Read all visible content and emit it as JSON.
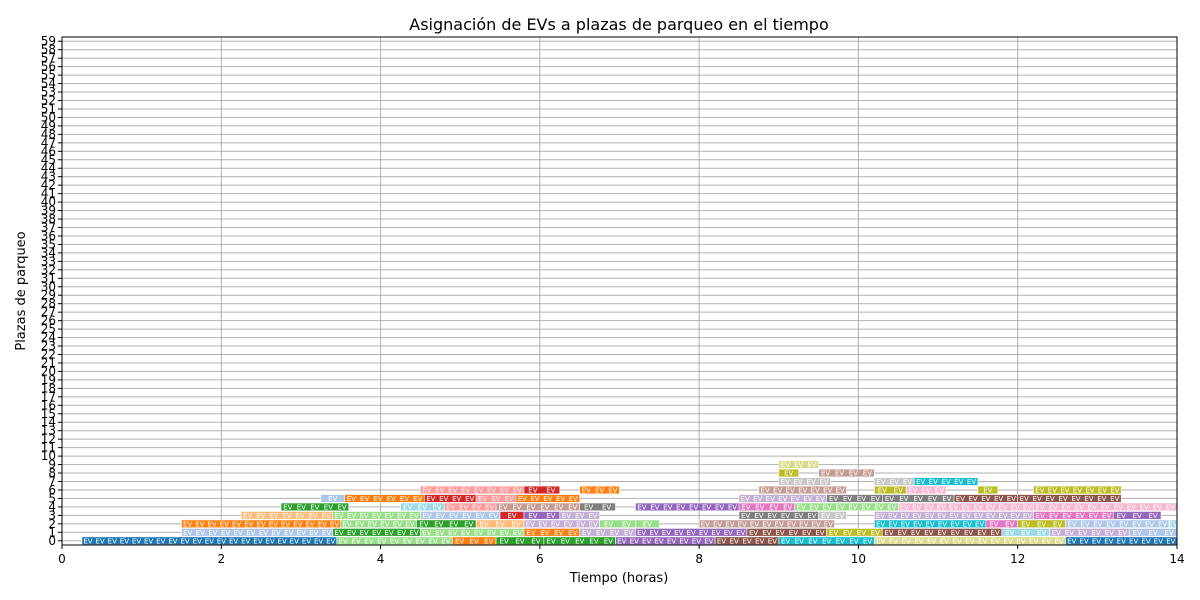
{
  "chart_data": {
    "type": "timeline",
    "title": "Asignación de EVs a plazas de parqueo en el tiempo",
    "xlabel": "Tiempo (horas)",
    "ylabel": "Plazas de parqueo",
    "xlim": [
      0,
      14
    ],
    "ylim": [
      -0.5,
      59.5
    ],
    "x_ticks": [
      0,
      2,
      4,
      6,
      8,
      10,
      12,
      14
    ],
    "y_ticks": [
      0,
      1,
      2,
      3,
      4,
      5,
      6,
      7,
      8,
      9,
      10,
      11,
      12,
      13,
      14,
      15,
      16,
      17,
      18,
      19,
      20,
      21,
      22,
      23,
      24,
      25,
      26,
      27,
      28,
      29,
      30,
      31,
      32,
      33,
      34,
      35,
      36,
      37,
      38,
      39,
      40,
      41,
      42,
      43,
      44,
      45,
      46,
      47,
      48,
      49,
      50,
      51,
      52,
      53,
      54,
      55,
      56,
      57,
      58,
      59
    ],
    "grid": true,
    "segment_label": "EV",
    "palette": [
      "#1f77b4",
      "#ff7f0e",
      "#2ca02c",
      "#d62728",
      "#9467bd",
      "#8c564b",
      "#e377c2",
      "#7f7f7f",
      "#bcbd22",
      "#17becf",
      "#aec7e8",
      "#ffbb78",
      "#98df8a",
      "#ff9896",
      "#c5b0d5",
      "#c49c94",
      "#f7b6d2",
      "#c7c7c7",
      "#dbdb8d",
      "#9edae5"
    ],
    "rows": [
      {
        "spot": 0,
        "segments": [
          [
            0.25,
            3.45,
            0
          ],
          [
            3.45,
            4.9,
            12
          ],
          [
            4.9,
            5.45,
            1
          ],
          [
            5.45,
            6.05,
            2
          ],
          [
            6.05,
            6.95,
            2
          ],
          [
            6.95,
            8.2,
            4
          ],
          [
            8.2,
            9.0,
            5
          ],
          [
            9.0,
            10.2,
            9
          ],
          [
            10.2,
            12.6,
            18
          ],
          [
            12.6,
            14.0,
            0
          ]
        ]
      },
      {
        "spot": 1,
        "segments": [
          [
            1.5,
            3.4,
            10
          ],
          [
            3.4,
            4.5,
            2
          ],
          [
            4.5,
            5.8,
            12
          ],
          [
            5.8,
            6.5,
            1
          ],
          [
            6.5,
            7.2,
            14
          ],
          [
            7.2,
            8.6,
            4
          ],
          [
            8.6,
            9.6,
            5
          ],
          [
            9.6,
            10.3,
            8
          ],
          [
            10.3,
            11.8,
            5
          ],
          [
            11.8,
            12.4,
            19
          ],
          [
            12.4,
            13.4,
            14
          ],
          [
            13.4,
            14.0,
            10
          ]
        ]
      },
      {
        "spot": 2,
        "segments": [
          [
            1.5,
            3.5,
            1
          ],
          [
            3.5,
            4.45,
            12
          ],
          [
            4.45,
            5.2,
            2
          ],
          [
            5.2,
            5.8,
            11
          ],
          [
            5.8,
            6.75,
            14
          ],
          [
            6.75,
            7.2,
            12
          ],
          [
            7.2,
            7.5,
            12
          ],
          [
            8.0,
            9.7,
            15
          ],
          [
            10.2,
            11.6,
            9
          ],
          [
            11.6,
            12.0,
            6
          ],
          [
            12.0,
            12.6,
            8
          ],
          [
            12.6,
            13.9,
            10
          ],
          [
            13.9,
            14.0,
            19
          ]
        ]
      },
      {
        "spot": 3,
        "segments": [
          [
            2.25,
            3.4,
            11
          ],
          [
            3.4,
            4.5,
            12
          ],
          [
            4.5,
            5.5,
            10
          ],
          [
            5.5,
            5.8,
            3
          ],
          [
            5.8,
            6.25,
            4
          ],
          [
            6.25,
            6.75,
            14
          ],
          [
            8.5,
            9.5,
            7
          ],
          [
            9.5,
            9.85,
            17
          ],
          [
            10.2,
            12.2,
            14
          ],
          [
            12.2,
            13.2,
            6
          ],
          [
            13.2,
            13.8,
            4
          ]
        ]
      },
      {
        "spot": 4,
        "segments": [
          [
            2.75,
            3.6,
            2
          ],
          [
            4.25,
            4.8,
            19
          ],
          [
            4.8,
            5.45,
            13
          ],
          [
            5.45,
            6.5,
            15
          ],
          [
            6.5,
            6.95,
            7
          ],
          [
            7.2,
            8.5,
            4
          ],
          [
            8.5,
            9.2,
            6
          ],
          [
            9.2,
            10.5,
            12
          ],
          [
            10.5,
            12.2,
            16
          ],
          [
            12.2,
            14.0,
            16
          ]
        ]
      },
      {
        "spot": 5,
        "segments": [
          [
            3.25,
            3.55,
            10
          ],
          [
            3.55,
            4.55,
            1
          ],
          [
            4.55,
            5.2,
            3
          ],
          [
            5.2,
            5.7,
            13
          ],
          [
            5.7,
            6.5,
            1
          ],
          [
            8.5,
            9.6,
            14
          ],
          [
            9.6,
            10.3,
            7
          ],
          [
            10.3,
            11.2,
            7
          ],
          [
            11.2,
            12.0,
            5
          ],
          [
            12.0,
            13.3,
            5
          ]
        ]
      },
      {
        "spot": 6,
        "segments": [
          [
            4.5,
            5.8,
            13
          ],
          [
            5.8,
            6.25,
            3
          ],
          [
            6.5,
            7.0,
            1
          ],
          [
            8.75,
            9.85,
            15
          ],
          [
            10.2,
            10.6,
            8
          ],
          [
            10.6,
            11.1,
            16
          ],
          [
            11.5,
            11.75,
            8
          ],
          [
            12.2,
            13.3,
            8
          ]
        ]
      },
      {
        "spot": 7,
        "segments": [
          [
            9.0,
            9.65,
            17
          ],
          [
            10.2,
            10.7,
            17
          ],
          [
            10.7,
            11.5,
            9
          ]
        ]
      },
      {
        "spot": 8,
        "segments": [
          [
            9.0,
            9.25,
            8
          ],
          [
            9.5,
            10.2,
            15
          ]
        ]
      },
      {
        "spot": 9,
        "segments": [
          [
            9.0,
            9.5,
            18
          ]
        ]
      }
    ]
  }
}
